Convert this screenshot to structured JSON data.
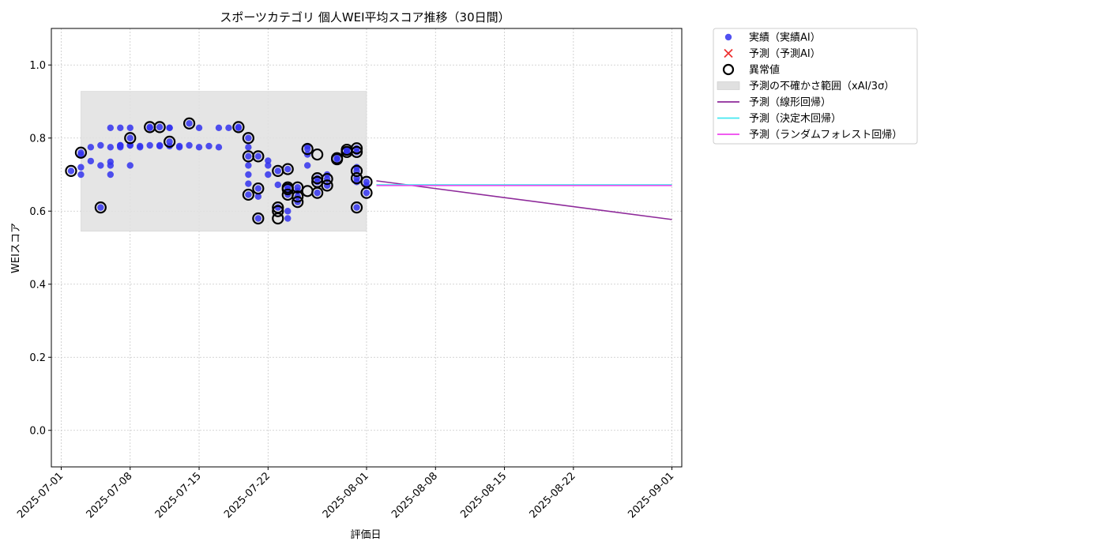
{
  "chart_data": {
    "type": "scatter",
    "title": "スポーツカテゴリ 個人WEI平均スコア推移（30日間）",
    "xlabel": "評価日",
    "ylabel": "WEIスコア",
    "ylim": [
      -0.1,
      1.1
    ],
    "xlim": [
      "2025-06-30",
      "2025-09-02"
    ],
    "y_ticks": [
      0.0,
      0.2,
      0.4,
      0.6,
      0.8,
      1.0
    ],
    "y_tick_labels": [
      "0.0",
      "0.2",
      "0.4",
      "0.6",
      "0.8",
      "1.0"
    ],
    "x_ticks": [
      "2025-07-01",
      "2025-07-08",
      "2025-07-15",
      "2025-07-22",
      "2025-08-01",
      "2025-08-08",
      "2025-08-15",
      "2025-08-22",
      "2025-09-01"
    ],
    "grid": true,
    "legend_position": "outside-top-right",
    "legend": [
      {
        "label": "実績（実績AI）",
        "kind": "point",
        "color": "#3333ee"
      },
      {
        "label": "予測（予測AI）",
        "kind": "cross",
        "color": "#ee3333"
      },
      {
        "label": "異常値",
        "kind": "ring",
        "color": "#000000"
      },
      {
        "label": "予測の不確かさ範囲（xAI/3σ）",
        "kind": "band",
        "color": "#e0e0e0"
      },
      {
        "label": "予測（線形回帰）",
        "kind": "line",
        "color": "#8e2a9a"
      },
      {
        "label": "予測（決定木回帰）",
        "kind": "line",
        "color": "#44e8f0"
      },
      {
        "label": "予測（ランダムフォレスト回帰）",
        "kind": "line",
        "color": "#ee44ee"
      }
    ],
    "uncertainty_band": {
      "x": [
        "2025-07-03",
        "2025-08-01"
      ],
      "y": [
        0.545,
        0.928
      ],
      "color": "#e0e0e0"
    },
    "series": [
      {
        "name": "実績（実績AI）",
        "color": "#3333ee",
        "points": [
          [
            "2025-07-02",
            0.71
          ],
          [
            "2025-07-03",
            0.76
          ],
          [
            "2025-07-03",
            0.7
          ],
          [
            "2025-07-03",
            0.755
          ],
          [
            "2025-07-03",
            0.72
          ],
          [
            "2025-07-04",
            0.737
          ],
          [
            "2025-07-04",
            0.775
          ],
          [
            "2025-07-05",
            0.78
          ],
          [
            "2025-07-05",
            0.725
          ],
          [
            "2025-07-05",
            0.61
          ],
          [
            "2025-07-06",
            0.7
          ],
          [
            "2025-07-06",
            0.735
          ],
          [
            "2025-07-06",
            0.725
          ],
          [
            "2025-07-06",
            0.775
          ],
          [
            "2025-07-06",
            0.828
          ],
          [
            "2025-07-07",
            0.828
          ],
          [
            "2025-07-07",
            0.78
          ],
          [
            "2025-07-07",
            0.775
          ],
          [
            "2025-07-07",
            0.778
          ],
          [
            "2025-07-07",
            0.78
          ],
          [
            "2025-07-08",
            0.78
          ],
          [
            "2025-07-08",
            0.725
          ],
          [
            "2025-07-08",
            0.828
          ],
          [
            "2025-07-08",
            0.78
          ],
          [
            "2025-07-08",
            0.8
          ],
          [
            "2025-07-09",
            0.778
          ],
          [
            "2025-07-09",
            0.775
          ],
          [
            "2025-07-10",
            0.828
          ],
          [
            "2025-07-10",
            0.78
          ],
          [
            "2025-07-10",
            0.83
          ],
          [
            "2025-07-11",
            0.83
          ],
          [
            "2025-07-11",
            0.78
          ],
          [
            "2025-07-11",
            0.778
          ],
          [
            "2025-07-12",
            0.828
          ],
          [
            "2025-07-12",
            0.828
          ],
          [
            "2025-07-12",
            0.79
          ],
          [
            "2025-07-12",
            0.778
          ],
          [
            "2025-07-13",
            0.775
          ],
          [
            "2025-07-13",
            0.778
          ],
          [
            "2025-07-14",
            0.78
          ],
          [
            "2025-07-14",
            0.84
          ],
          [
            "2025-07-15",
            0.775
          ],
          [
            "2025-07-15",
            0.828
          ],
          [
            "2025-07-16",
            0.778
          ],
          [
            "2025-07-17",
            0.775
          ],
          [
            "2025-07-17",
            0.828
          ],
          [
            "2025-07-18",
            0.828
          ],
          [
            "2025-07-19",
            0.83
          ],
          [
            "2025-07-19",
            0.828
          ],
          [
            "2025-07-20",
            0.8
          ],
          [
            "2025-07-20",
            0.775
          ],
          [
            "2025-07-20",
            0.75
          ],
          [
            "2025-07-20",
            0.725
          ],
          [
            "2025-07-20",
            0.7
          ],
          [
            "2025-07-20",
            0.675
          ],
          [
            "2025-07-20",
            0.645
          ],
          [
            "2025-07-21",
            0.75
          ],
          [
            "2025-07-21",
            0.64
          ],
          [
            "2025-07-21",
            0.58
          ],
          [
            "2025-07-21",
            0.662
          ],
          [
            "2025-07-22",
            0.725
          ],
          [
            "2025-07-22",
            0.738
          ],
          [
            "2025-07-22",
            0.7
          ],
          [
            "2025-07-23",
            0.672
          ],
          [
            "2025-07-23",
            0.71
          ],
          [
            "2025-07-23",
            0.61
          ],
          [
            "2025-07-24",
            0.6
          ],
          [
            "2025-07-24",
            0.58
          ],
          [
            "2025-07-24",
            0.715
          ],
          [
            "2025-07-24",
            0.66
          ],
          [
            "2025-07-24",
            0.665
          ],
          [
            "2025-07-24",
            0.645
          ],
          [
            "2025-07-25",
            0.665
          ],
          [
            "2025-07-25",
            0.64
          ],
          [
            "2025-07-25",
            0.625
          ],
          [
            "2025-07-25",
            0.655
          ],
          [
            "2025-07-26",
            0.77
          ],
          [
            "2025-07-26",
            0.778
          ],
          [
            "2025-07-26",
            0.755
          ],
          [
            "2025-07-26",
            0.725
          ],
          [
            "2025-07-27",
            0.69
          ],
          [
            "2025-07-27",
            0.68
          ],
          [
            "2025-07-27",
            0.65
          ],
          [
            "2025-07-28",
            0.7
          ],
          [
            "2025-07-28",
            0.688
          ],
          [
            "2025-07-28",
            0.67
          ],
          [
            "2025-07-29",
            0.745
          ],
          [
            "2025-07-29",
            0.742
          ],
          [
            "2025-07-30",
            0.762
          ],
          [
            "2025-07-30",
            0.768
          ],
          [
            "2025-07-30",
            0.765
          ],
          [
            "2025-07-31",
            0.69
          ],
          [
            "2025-07-31",
            0.71
          ],
          [
            "2025-07-31",
            0.72
          ],
          [
            "2025-07-31",
            0.762
          ],
          [
            "2025-07-31",
            0.772
          ],
          [
            "2025-07-31",
            0.61
          ],
          [
            "2025-07-31",
            0.68
          ],
          [
            "2025-08-01",
            0.68
          ],
          [
            "2025-08-01",
            0.65
          ],
          [
            "2025-08-01",
            0.67
          ]
        ]
      },
      {
        "name": "異常値",
        "color": "#000000",
        "points": [
          [
            "2025-07-02",
            0.71
          ],
          [
            "2025-07-03",
            0.76
          ],
          [
            "2025-07-05",
            0.61
          ],
          [
            "2025-07-08",
            0.8
          ],
          [
            "2025-07-10",
            0.83
          ],
          [
            "2025-07-11",
            0.83
          ],
          [
            "2025-07-12",
            0.79
          ],
          [
            "2025-07-14",
            0.84
          ],
          [
            "2025-07-19",
            0.83
          ],
          [
            "2025-07-20",
            0.8
          ],
          [
            "2025-07-20",
            0.75
          ],
          [
            "2025-07-21",
            0.75
          ],
          [
            "2025-07-20",
            0.645
          ],
          [
            "2025-07-21",
            0.58
          ],
          [
            "2025-07-21",
            0.662
          ],
          [
            "2025-07-23",
            0.71
          ],
          [
            "2025-07-24",
            0.715
          ],
          [
            "2025-07-23",
            0.61
          ],
          [
            "2025-07-23",
            0.6
          ],
          [
            "2025-07-23",
            0.58
          ],
          [
            "2025-07-24",
            0.66
          ],
          [
            "2025-07-24",
            0.665
          ],
          [
            "2025-07-24",
            0.645
          ],
          [
            "2025-07-25",
            0.665
          ],
          [
            "2025-07-25",
            0.64
          ],
          [
            "2025-07-25",
            0.625
          ],
          [
            "2025-07-26",
            0.655
          ],
          [
            "2025-07-26",
            0.77
          ],
          [
            "2025-07-27",
            0.755
          ],
          [
            "2025-07-27",
            0.69
          ],
          [
            "2025-07-27",
            0.68
          ],
          [
            "2025-07-27",
            0.65
          ],
          [
            "2025-07-28",
            0.688
          ],
          [
            "2025-07-28",
            0.67
          ],
          [
            "2025-07-29",
            0.745
          ],
          [
            "2025-07-29",
            0.742
          ],
          [
            "2025-07-30",
            0.762
          ],
          [
            "2025-07-30",
            0.768
          ],
          [
            "2025-07-31",
            0.69
          ],
          [
            "2025-07-31",
            0.71
          ],
          [
            "2025-07-31",
            0.762
          ],
          [
            "2025-07-31",
            0.772
          ],
          [
            "2025-07-31",
            0.61
          ],
          [
            "2025-08-01",
            0.68
          ],
          [
            "2025-08-01",
            0.65
          ]
        ]
      }
    ],
    "forecast_lines": [
      {
        "name": "予測（線形回帰）",
        "color": "#8e2a9a",
        "points": [
          [
            "2025-08-02",
            0.683
          ],
          [
            "2025-09-01",
            0.577
          ]
        ]
      },
      {
        "name": "予測（決定木回帰）",
        "color": "#44e8f0",
        "points": [
          [
            "2025-08-02",
            0.672
          ],
          [
            "2025-09-01",
            0.672
          ]
        ]
      },
      {
        "name": "予測（ランダムフォレスト回帰）",
        "color": "#ee44ee",
        "points": [
          [
            "2025-08-02",
            0.67
          ],
          [
            "2025-09-01",
            0.67
          ]
        ]
      }
    ]
  }
}
